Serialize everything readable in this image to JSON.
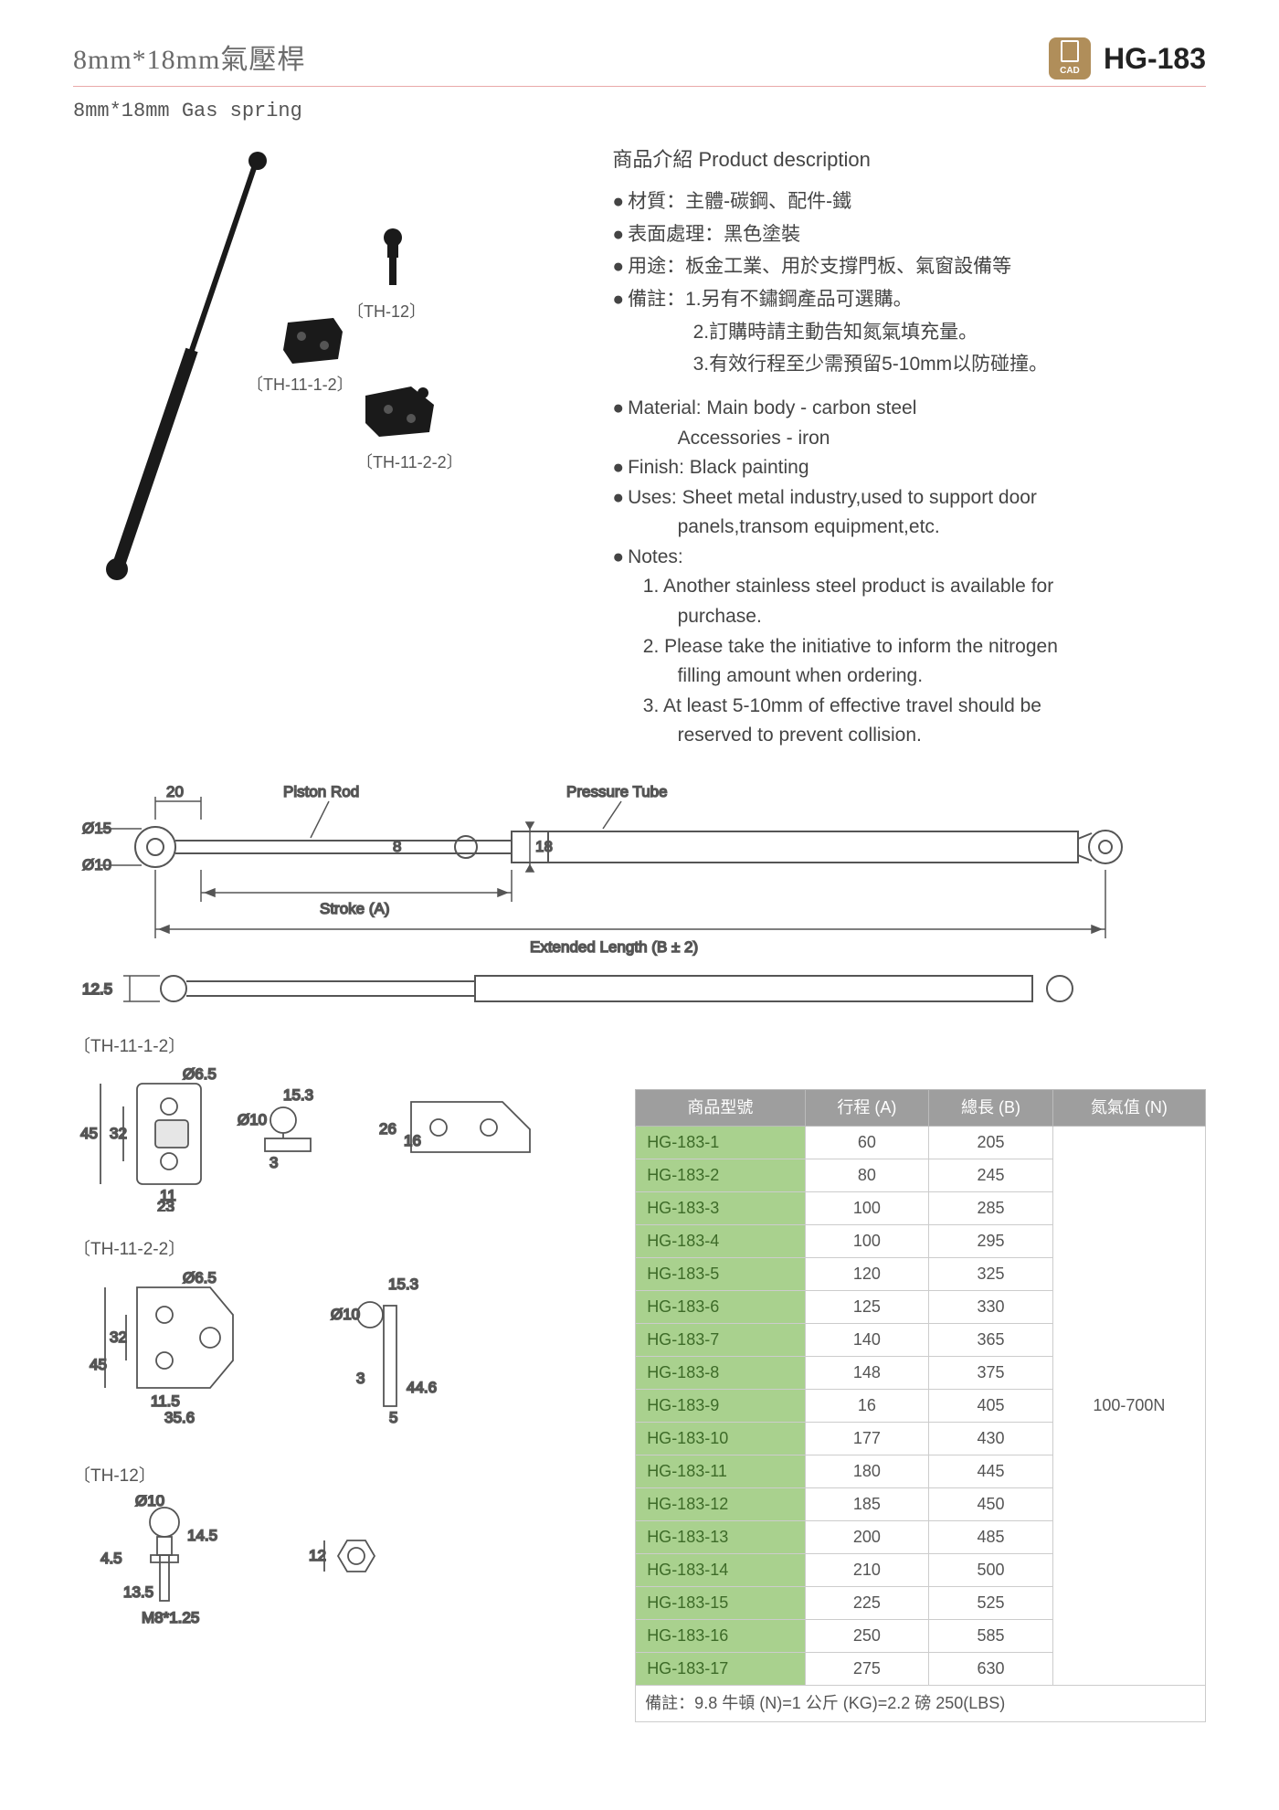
{
  "title_cn": "8mm*18mm氣壓桿",
  "title_en": "8mm*18mm Gas spring",
  "product_code": "HG-183",
  "cad_label": "CAD",
  "desc_heading": "商品介紹 Product description",
  "desc_cn": {
    "material": "材質：主體-碳鋼、配件-鐵",
    "finish": "表面處理：黑色塗裝",
    "uses": "用途：板金工業、用於支撐門板、氣窗設備等",
    "notes_label": "備註：1.另有不鏽鋼產品可選購。",
    "note2": "2.訂購時請主動告知氮氣填充量。",
    "note3": "3.有效行程至少需預留5-10mm以防碰撞。"
  },
  "desc_en": {
    "material": "Material: Main body - carbon steel",
    "material2": "Accessories - iron",
    "finish": "Finish: Black painting",
    "uses": "Uses: Sheet metal industry,used to support door",
    "uses2": "panels,transom equipment,etc.",
    "notes_label": "Notes:",
    "note1a": "1. Another stainless steel product is available for",
    "note1b": "purchase.",
    "note2a": "2. Please take the initiative to inform the nitrogen",
    "note2b": "filling amount when ordering.",
    "note3a": "3. At least 5-10mm of effective travel should be",
    "note3b": "reserved to prevent collision."
  },
  "bracket_labels": {
    "th12": "〔TH-12〕",
    "th1112": "〔TH-11-1-2〕",
    "th1122": "〔TH-11-2-2〕"
  },
  "diagram_labels": {
    "piston_rod": "Piston Rod",
    "pressure_tube": "Pressure Tube",
    "stroke": "Stroke (A)",
    "extended": "Extended Length (B ± 2)",
    "d15": "Ø15",
    "d10": "Ø10",
    "w20": "20",
    "h8": "8",
    "h18": "18",
    "h125": "12.5"
  },
  "bracket_dims": {
    "th1112": {
      "d65": "Ø6.5",
      "h45": "45",
      "h32": "32",
      "w11": "11",
      "w23": "23",
      "w153": "15.3",
      "d10": "Ø10",
      "h3": "3",
      "h26": "26",
      "h16": "16"
    },
    "th1122": {
      "d65": "Ø6.5",
      "h32": "32",
      "h45": "45",
      "w115": "11.5",
      "w356": "35.6",
      "w153": "15.3",
      "d10": "Ø10",
      "h3": "3",
      "w446": "44.6",
      "h5": "5"
    },
    "th12": {
      "d10": "Ø10",
      "h145": "14.5",
      "h45": "4.5",
      "w135": "13.5",
      "thread": "M8*1.25",
      "hex12": "12"
    }
  },
  "table": {
    "columns": [
      "商品型號",
      "行程 (A)",
      "總長 (B)",
      "氮氣值 (N)"
    ],
    "rows": [
      [
        "HG-183-1",
        "60",
        "205"
      ],
      [
        "HG-183-2",
        "80",
        "245"
      ],
      [
        "HG-183-3",
        "100",
        "285"
      ],
      [
        "HG-183-4",
        "100",
        "295"
      ],
      [
        "HG-183-5",
        "120",
        "325"
      ],
      [
        "HG-183-6",
        "125",
        "330"
      ],
      [
        "HG-183-7",
        "140",
        "365"
      ],
      [
        "HG-183-8",
        "148",
        "375"
      ],
      [
        "HG-183-9",
        "16",
        "405"
      ],
      [
        "HG-183-10",
        "177",
        "430"
      ],
      [
        "HG-183-11",
        "180",
        "445"
      ],
      [
        "HG-183-12",
        "185",
        "450"
      ],
      [
        "HG-183-13",
        "200",
        "485"
      ],
      [
        "HG-183-14",
        "210",
        "500"
      ],
      [
        "HG-183-15",
        "225",
        "525"
      ],
      [
        "HG-183-16",
        "250",
        "585"
      ],
      [
        "HG-183-17",
        "275",
        "630"
      ]
    ],
    "nitrogen": "100-700N",
    "footnote": "備註：9.8 牛頓 (N)=1 公斤 (KG)=2.2 磅 250(LBS)"
  },
  "colors": {
    "header_rule": "#e9a9a9",
    "table_header_bg": "#9e9e9e",
    "table_model_bg": "#a9d18e",
    "table_model_text": "#3d6b28",
    "cad_bg": "#b08e5a",
    "text": "#444444",
    "border": "#cccccc"
  }
}
